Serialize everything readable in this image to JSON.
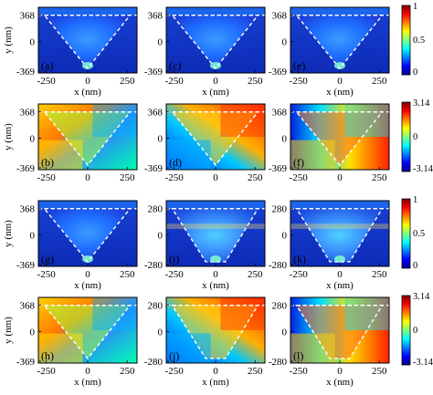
{
  "figure": {
    "panels": [
      {
        "label": "(a)",
        "kind": "amp",
        "shape": "triangle",
        "row": 0,
        "col": 0,
        "show_x": true
      },
      {
        "label": "(c)",
        "kind": "amp",
        "shape": "triangle",
        "row": 0,
        "col": 1,
        "show_x": true
      },
      {
        "label": "(e)",
        "kind": "amp",
        "shape": "triangle",
        "row": 0,
        "col": 2,
        "show_x": true
      },
      {
        "label": "(b)",
        "kind": "phase",
        "shape": "triangle",
        "row": 1,
        "col": 0,
        "show_x": false
      },
      {
        "label": "(d)",
        "kind": "phase",
        "shape": "triangle",
        "row": 1,
        "col": 1,
        "show_x": false
      },
      {
        "label": "(f)",
        "kind": "phase",
        "shape": "triangle",
        "row": 1,
        "col": 2,
        "show_x": false
      },
      {
        "label": "(g)",
        "kind": "amp",
        "shape": "triangle",
        "row": 2,
        "col": 0,
        "show_x": true
      },
      {
        "label": "(i)",
        "kind": "amp",
        "shape": "trapezoid",
        "row": 2,
        "col": 1,
        "show_x": true
      },
      {
        "label": "(k)",
        "kind": "amp",
        "shape": "trapezoid",
        "row": 2,
        "col": 2,
        "show_x": true
      },
      {
        "label": "(h)",
        "kind": "phase",
        "shape": "triangle",
        "row": 3,
        "col": 0,
        "show_x": true
      },
      {
        "label": "(j)",
        "kind": "phase",
        "shape": "trapezoid",
        "row": 3,
        "col": 1,
        "show_x": true
      },
      {
        "label": "(l)",
        "kind": "phase",
        "shape": "trapezoid",
        "row": 3,
        "col": 2,
        "show_x": true
      }
    ],
    "y_ticks": {
      "tall": [
        "368",
        "0",
        "-369"
      ],
      "short": [
        "280",
        "0",
        "-280"
      ]
    },
    "row_y_ticks": [
      "tall",
      "tall",
      "tall",
      "tall"
    ],
    "row_y_ticks_per_col": [
      [
        "tall",
        "tall",
        "tall"
      ],
      [
        "tall",
        "tall",
        "tall"
      ],
      [
        "tall",
        "short",
        "short"
      ],
      [
        "tall",
        "short",
        "short"
      ]
    ],
    "x_ticks": [
      "-250",
      "0",
      "250"
    ],
    "x_label": "x (nm)",
    "y_label": "y (nm)",
    "colorbars": [
      {
        "ticks": [
          "1",
          "0.5",
          "0"
        ]
      },
      {
        "ticks": [
          "3.14",
          "0",
          "-3.14"
        ]
      },
      {
        "ticks": [
          "1",
          "0.5",
          "0"
        ]
      },
      {
        "ticks": [
          "3.14",
          "0",
          "-3.14"
        ]
      }
    ]
  }
}
